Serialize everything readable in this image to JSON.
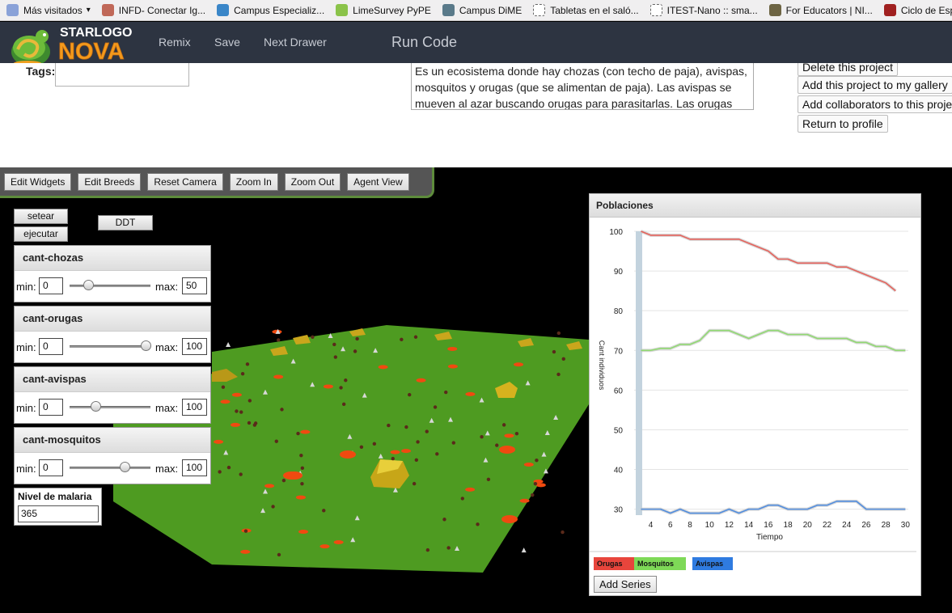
{
  "bookmarks": [
    {
      "label": "Más visitados",
      "icon": "folder-icon",
      "color": "#8aa2d8"
    },
    {
      "label": "INFD- Conectar Ig...",
      "icon": "heart-shield-icon",
      "color": "#c06858"
    },
    {
      "label": "Campus Especializ...",
      "icon": "globe-badge-icon",
      "color": "#3a86c8"
    },
    {
      "label": "LimeSurvey PyPE",
      "icon": "lime-icon",
      "color": "#8bc34a"
    },
    {
      "label": "Campus DiME",
      "icon": "drop-icon",
      "color": "#5a7a8a"
    },
    {
      "label": "Tabletas en el saló...",
      "icon": "page-icon",
      "color": "#ffffff"
    },
    {
      "label": "ITEST-Nano :: sma...",
      "icon": "page-icon",
      "color": "#ffffff"
    },
    {
      "label": "For Educators | NI...",
      "icon": "seal-icon",
      "color": "#6d6443"
    },
    {
      "label": "Ciclo de Especi",
      "icon": "book-icon",
      "color": "#a02020"
    }
  ],
  "logo": {
    "line1": "STARLOGO",
    "line2": "NOVA"
  },
  "nav": {
    "remix": "Remix",
    "save": "Save",
    "next_drawer": "Next Drawer",
    "run_code": "Run Code"
  },
  "project": {
    "tags_label": "Tags:",
    "description": "Es un ecosistema donde hay chozas (con techo de paja), avispas, mosquitos y orugas (que se alimentan de paja). Las avispas se mueven al azar buscando orugas para parasitarlas. Las orugas",
    "buttons": [
      "Delete this project",
      "Add this project to my gallery",
      "Add collaborators to this proje",
      "Return to profile"
    ]
  },
  "toolbar": [
    "Edit Widgets",
    "Edit Breeds",
    "Reset Camera",
    "Zoom In",
    "Zoom Out",
    "Agent View"
  ],
  "widgets": {
    "setear": "setear",
    "ejecutar": "ejecutar",
    "ddt": "DDT",
    "min_label": "min:",
    "max_label": "max:",
    "sliders": [
      {
        "title": "cant-chozas",
        "min": "0",
        "max": "50",
        "fraction": 0.23
      },
      {
        "title": "cant-orugas",
        "min": "0",
        "max": "100",
        "fraction": 0.94
      },
      {
        "title": "cant-avispas",
        "min": "0",
        "max": "100",
        "fraction": 0.32
      },
      {
        "title": "cant-mosquitos",
        "min": "0",
        "max": "100",
        "fraction": 0.68
      }
    ],
    "malaria_label": "Nivel de malaria",
    "malaria_value": "365"
  },
  "chart_data": {
    "type": "line",
    "title": "Poblaciones",
    "xlabel": "Tiempo",
    "ylabel": "Cant individuos",
    "x": [
      3,
      4,
      5,
      6,
      7,
      8,
      9,
      10,
      11,
      12,
      13,
      14,
      15,
      16,
      17,
      18,
      19,
      20,
      21,
      22,
      23,
      24,
      25,
      26,
      27,
      28,
      29,
      30
    ],
    "xticks": [
      4,
      6,
      8,
      10,
      12,
      14,
      16,
      18,
      20,
      22,
      24,
      26,
      28,
      30
    ],
    "yticks": [
      30,
      40,
      50,
      60,
      70,
      80,
      90,
      100
    ],
    "xlim": [
      2.3,
      30.3
    ],
    "ylim": [
      28.5,
      100
    ],
    "grid": true,
    "legend_position": "bottom-left",
    "series": [
      {
        "name": "Orugas",
        "color": "#e8453c",
        "values": [
          100,
          99,
          99,
          99,
          99,
          98,
          98,
          98,
          98,
          98,
          98,
          97,
          96,
          95,
          93,
          93,
          92,
          92,
          92,
          92,
          91,
          91,
          90,
          89,
          88,
          87,
          85,
          null
        ]
      },
      {
        "name": "Mosquitos",
        "color": "#7ed957",
        "values": [
          70,
          70,
          70.5,
          70.5,
          71.5,
          71.5,
          72.5,
          75,
          75,
          75,
          74,
          73,
          74,
          75,
          75,
          74,
          74,
          74,
          73,
          73,
          73,
          73,
          72,
          72,
          71,
          71,
          70,
          70
        ]
      },
      {
        "name": "Avispas",
        "color": "#2f7be0",
        "values": [
          30,
          30,
          30,
          29,
          30,
          29,
          29,
          29,
          29,
          30,
          29,
          30,
          30,
          31,
          31,
          30,
          30,
          30,
          31,
          31,
          32,
          32,
          32,
          30,
          30,
          30,
          30,
          30
        ]
      }
    ]
  },
  "chart_ui": {
    "add_series": "Add Series"
  }
}
